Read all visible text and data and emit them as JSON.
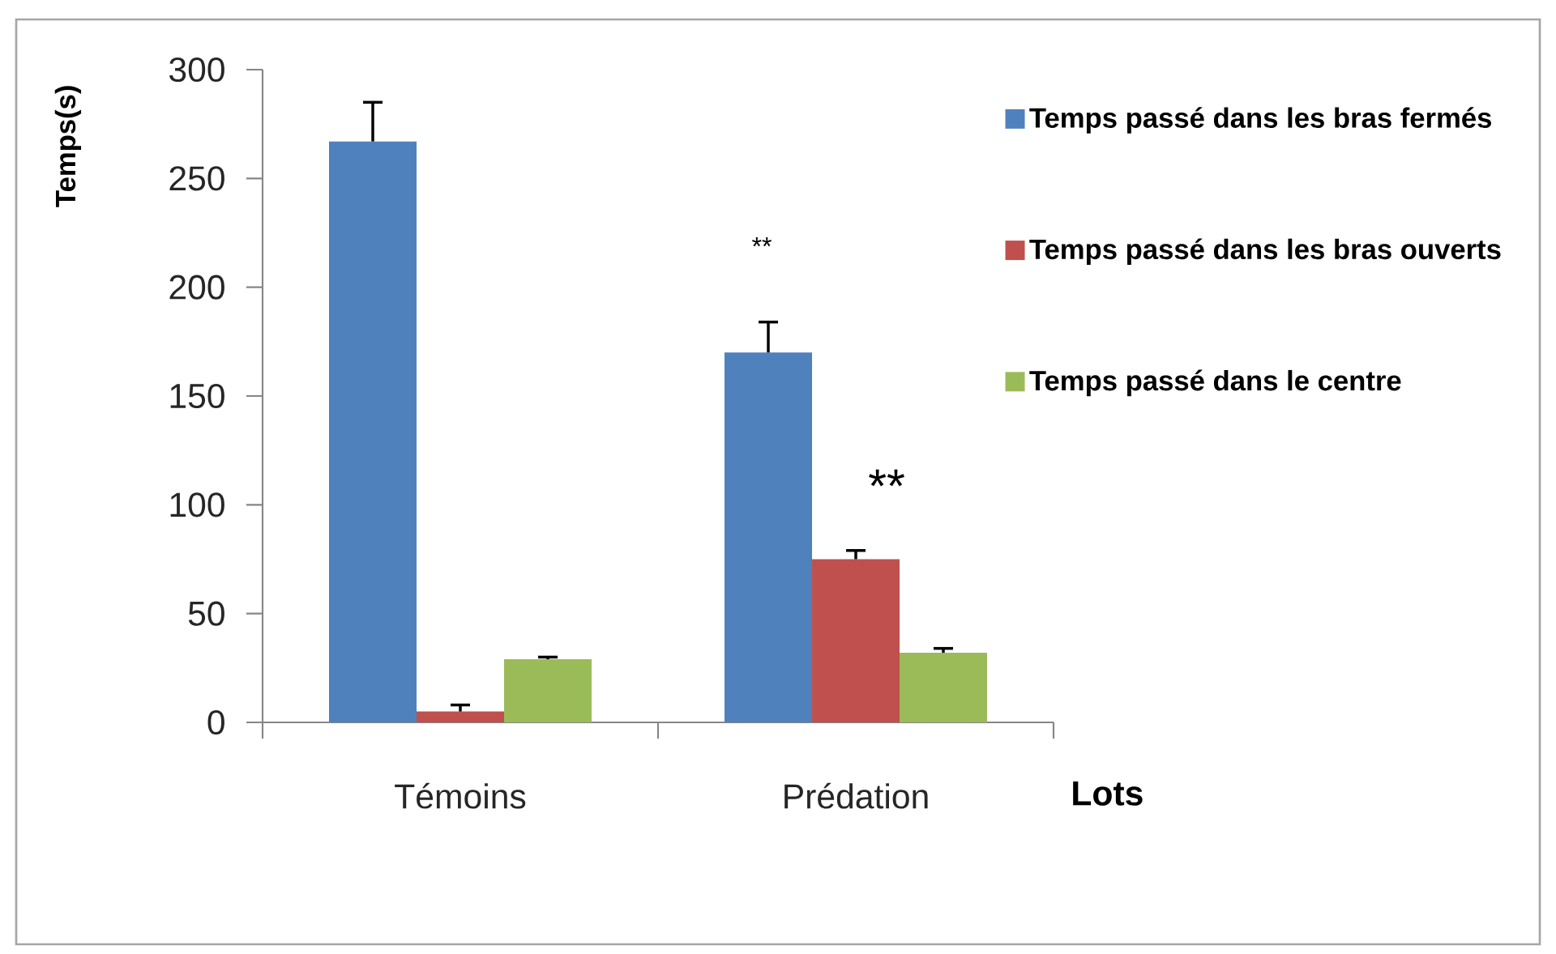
{
  "chart_data": {
    "type": "bar",
    "ylabel": "Temps(s)",
    "xlabel": "Lots",
    "categories": [
      "Témoins",
      "Prédation"
    ],
    "series": [
      {
        "name": "Temps passé dans les bras fermés",
        "color": "#4f81bd",
        "values": [
          267,
          170
        ],
        "errors": [
          [
            267,
            285
          ],
          [
            170,
            184
          ]
        ]
      },
      {
        "name": "Temps passé dans les bras ouverts",
        "color": "#c0504d",
        "values": [
          5,
          75
        ],
        "errors": [
          [
            5,
            8
          ],
          [
            75,
            79
          ]
        ]
      },
      {
        "name": "Temps passé dans le centre",
        "color": "#9bbb59",
        "values": [
          29,
          32
        ],
        "errors": [
          [
            29,
            30
          ],
          [
            32,
            34
          ]
        ]
      }
    ],
    "ylim": [
      0,
      300
    ],
    "yticks": [
      0,
      50,
      100,
      150,
      200,
      250,
      300
    ],
    "legend": "top right",
    "annotations": [
      "**",
      "**"
    ]
  }
}
